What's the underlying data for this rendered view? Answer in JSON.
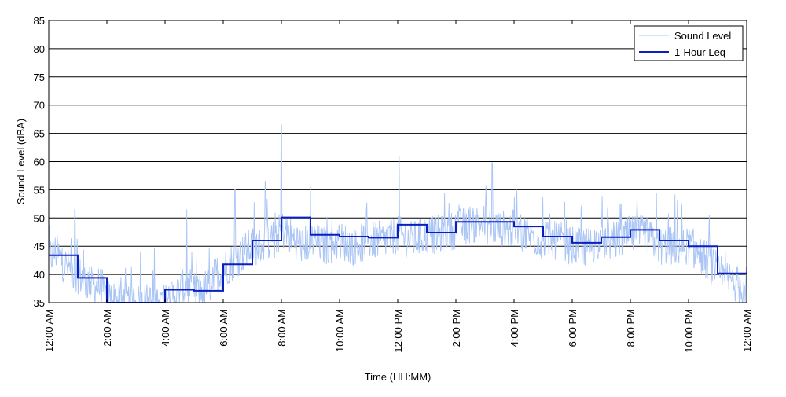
{
  "chart_data": {
    "type": "line",
    "title": "",
    "xlabel": "Time (HH:MM)",
    "ylabel": "Sound Level (dBA)",
    "xlim": [
      0,
      24
    ],
    "ylim": [
      35,
      85
    ],
    "yticks": [
      35,
      40,
      45,
      50,
      55,
      60,
      65,
      70,
      75,
      80,
      85
    ],
    "xticks": [
      {
        "hour": 0,
        "label": "12:00 AM"
      },
      {
        "hour": 2,
        "label": "2:00 AM"
      },
      {
        "hour": 4,
        "label": "4:00 AM"
      },
      {
        "hour": 6,
        "label": "6:00 AM"
      },
      {
        "hour": 8,
        "label": "8:00 AM"
      },
      {
        "hour": 10,
        "label": "10:00 AM"
      },
      {
        "hour": 12,
        "label": "12:00 PM"
      },
      {
        "hour": 14,
        "label": "2:00 PM"
      },
      {
        "hour": 16,
        "label": "4:00 PM"
      },
      {
        "hour": 18,
        "label": "6:00 PM"
      },
      {
        "hour": 20,
        "label": "8:00 PM"
      },
      {
        "hour": 22,
        "label": "10:00 PM"
      },
      {
        "hour": 24,
        "label": "12:00 AM"
      }
    ],
    "grid": "horizontal",
    "legend_position": "top-right",
    "series": [
      {
        "name": "Sound Level",
        "color": "#a9c4f5",
        "style": "thin-noisy",
        "x": [
          0.0,
          0.25,
          0.5,
          0.75,
          1.0,
          1.25,
          1.5,
          1.75,
          2.0,
          2.5,
          3.0,
          3.5,
          4.0,
          4.25,
          4.5,
          4.75,
          5.0,
          5.25,
          5.5,
          5.75,
          6.0,
          6.25,
          6.5,
          6.75,
          7.0,
          7.25,
          7.5,
          7.75,
          8.0,
          8.25,
          8.5,
          8.75,
          9.0,
          9.5,
          10.0,
          10.5,
          11.0,
          11.5,
          12.0,
          12.5,
          13.0,
          13.5,
          14.0,
          14.5,
          15.0,
          15.5,
          16.0,
          16.5,
          17.0,
          17.5,
          18.0,
          18.5,
          19.0,
          19.5,
          20.0,
          20.5,
          21.0,
          21.5,
          22.0,
          22.25,
          22.5,
          22.75,
          23.0,
          23.25,
          23.5,
          23.75,
          24.0
        ],
        "values": [
          43,
          44,
          42,
          41,
          40,
          39,
          38,
          38,
          36,
          35,
          35,
          35,
          35,
          36,
          37,
          38,
          37,
          37,
          38,
          40,
          41,
          42,
          43,
          44,
          45,
          45,
          46,
          46,
          48,
          47,
          46,
          45,
          46,
          45,
          46,
          45,
          46,
          46,
          47,
          46,
          47,
          47,
          48,
          49,
          49,
          48,
          48,
          47,
          46,
          46,
          45,
          45,
          46,
          46,
          47,
          47,
          45,
          45,
          45,
          44,
          43,
          42,
          40,
          39,
          39,
          38,
          38
        ],
        "peaks": [
          {
            "x": 8.0,
            "y": 66.5
          },
          {
            "x": 7.45,
            "y": 56.5
          },
          {
            "x": 12.05,
            "y": 61
          },
          {
            "x": 15.25,
            "y": 59.8
          },
          {
            "x": 4.75,
            "y": 51.5
          },
          {
            "x": 6.4,
            "y": 55
          },
          {
            "x": 9.0,
            "y": 55.5
          },
          {
            "x": 16.1,
            "y": 55
          },
          {
            "x": 20.9,
            "y": 54.5
          },
          {
            "x": 0.9,
            "y": 51.5
          },
          {
            "x": 3.15,
            "y": 44
          }
        ]
      },
      {
        "name": "1-Hour Leq",
        "color": "#0a1fc0",
        "style": "step",
        "hours": [
          0,
          1,
          2,
          3,
          4,
          5,
          6,
          7,
          8,
          9,
          10,
          11,
          12,
          13,
          14,
          15,
          16,
          17,
          18,
          19,
          20,
          21,
          22,
          23
        ],
        "values": [
          43.4,
          39.4,
          35,
          35,
          37.3,
          37.1,
          41.8,
          46.0,
          50.1,
          47.0,
          46.7,
          46.5,
          48.8,
          47.4,
          49.3,
          49.3,
          48.5,
          46.7,
          45.6,
          46.6,
          47.9,
          46.0,
          45.0,
          40.2
        ]
      }
    ]
  }
}
